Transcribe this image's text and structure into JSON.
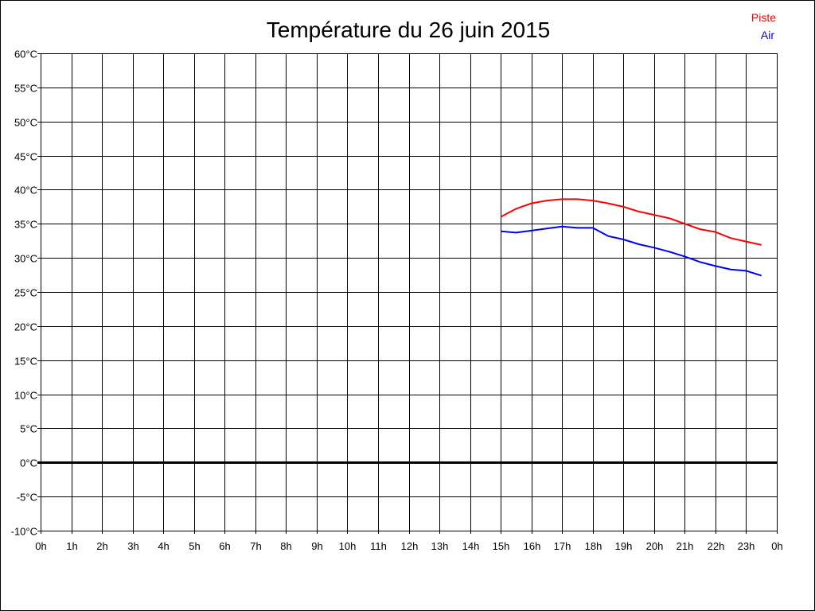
{
  "chart_data": {
    "type": "line",
    "title": "Température du 26 juin 2015",
    "xlabel": "",
    "ylabel": "",
    "xlim": [
      0,
      24
    ],
    "ylim": [
      -10,
      60
    ],
    "grid": true,
    "legend_position": "top-right",
    "x_tick_labels": [
      "0h",
      "1h",
      "2h",
      "3h",
      "4h",
      "5h",
      "6h",
      "7h",
      "8h",
      "9h",
      "10h",
      "11h",
      "12h",
      "13h",
      "14h",
      "15h",
      "16h",
      "17h",
      "18h",
      "19h",
      "20h",
      "21h",
      "22h",
      "23h",
      "0h"
    ],
    "y_ticks": [
      -10,
      -5,
      0,
      5,
      10,
      15,
      20,
      25,
      30,
      35,
      40,
      45,
      50,
      55,
      60
    ],
    "y_tick_labels": [
      "-10°C",
      "-5°C",
      "0°C",
      "5°C",
      "10°C",
      "15°C",
      "20°C",
      "25°C",
      "30°C",
      "35°C",
      "40°C",
      "45°C",
      "50°C",
      "55°C",
      "60°C"
    ],
    "x": [
      15,
      15.5,
      16,
      16.5,
      17,
      17.5,
      18,
      18.5,
      19,
      19.5,
      20,
      20.5,
      21,
      21.5,
      22,
      22.5,
      23,
      23.5
    ],
    "series": [
      {
        "name": "Piste",
        "color": "#ff0000",
        "values": [
          36.0,
          37.2,
          38.0,
          38.4,
          38.6,
          38.6,
          38.4,
          38.0,
          37.5,
          36.8,
          36.3,
          35.8,
          35.0,
          34.2,
          33.8,
          32.9,
          32.4,
          31.9
        ]
      },
      {
        "name": "Air",
        "color": "#0000ff",
        "values": [
          33.9,
          33.7,
          34.0,
          34.3,
          34.6,
          34.4,
          34.4,
          33.2,
          32.7,
          32.0,
          31.5,
          30.9,
          30.2,
          29.4,
          28.8,
          28.3,
          28.1,
          27.4
        ]
      }
    ]
  }
}
